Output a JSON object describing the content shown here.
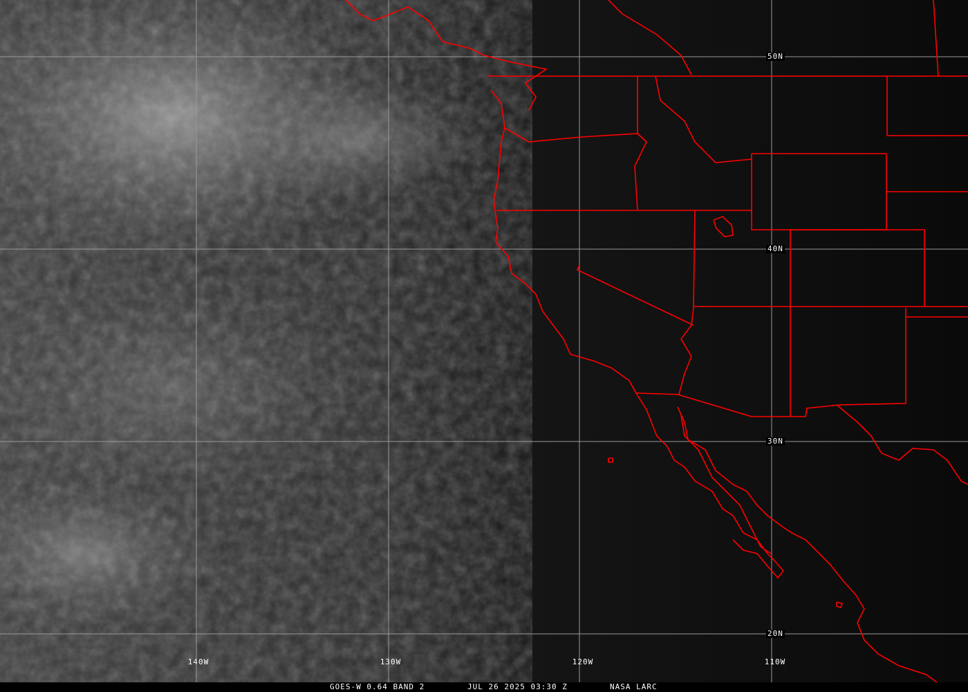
{
  "caption": {
    "satellite": "GOES-W 0.64 BAND 2",
    "datetime": "JUL 26 2025 03:30 Z",
    "source": "NASA LARC"
  },
  "longitude_labels": [
    "140W",
    "130W",
    "120W",
    "110W"
  ],
  "latitude_labels": [
    "50N",
    "40N",
    "30N",
    "20N"
  ],
  "colors": {
    "borders": "#ff0000",
    "grid": "#9a9a9a",
    "text": "#ffffff",
    "background": "#000000"
  }
}
